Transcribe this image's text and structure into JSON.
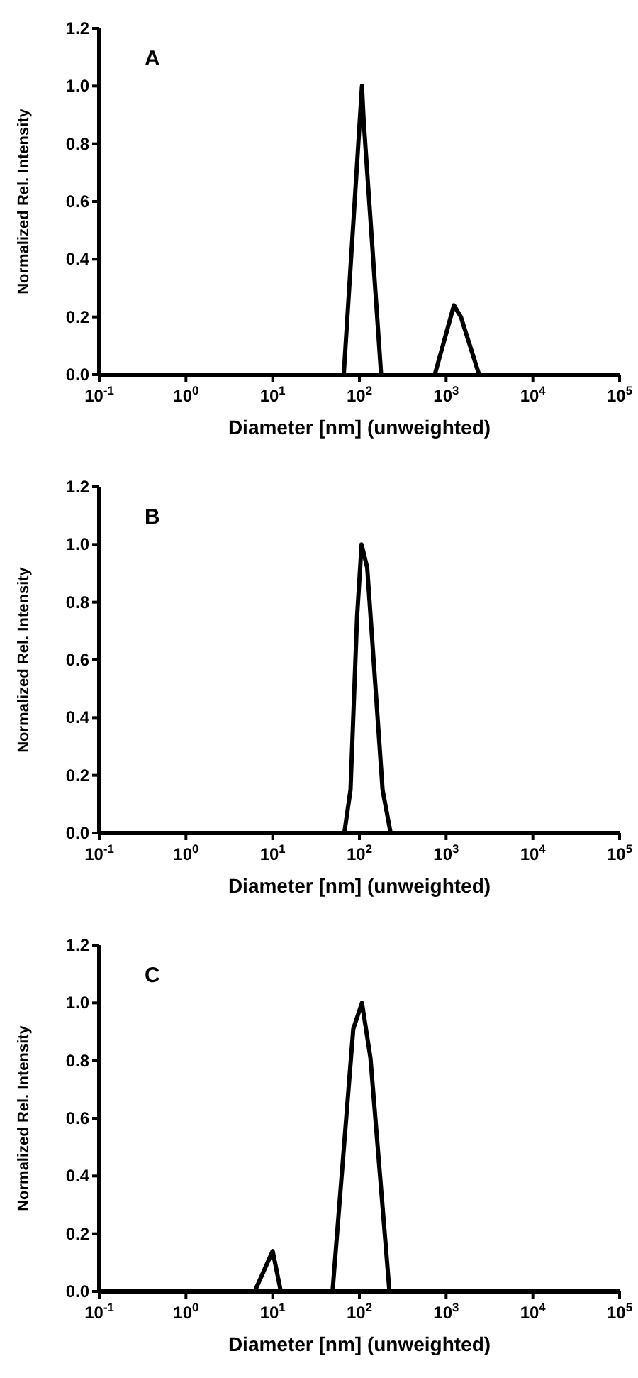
{
  "chart_data": [
    {
      "type": "line",
      "xlabel": "Diameter [nm] (unweighted)",
      "ylabel": "Normalized Rel. Intensity",
      "annotations": [
        "A"
      ],
      "log": "x",
      "xlim": [
        0.1,
        100000
      ],
      "ylim": [
        0,
        1.2
      ],
      "xticks": [
        {
          "value": 0.1,
          "label": "10$^{-1}$"
        },
        {
          "value": 1,
          "label": "10$^{0}$"
        },
        {
          "value": 10,
          "label": "10$^{1}$"
        },
        {
          "value": 100,
          "label": "10$^{2}$"
        },
        {
          "value": 1000,
          "label": "10$^{3}$"
        },
        {
          "value": 10000,
          "label": "10$^{4}$"
        },
        {
          "value": 100000,
          "label": "10$^{5}$"
        }
      ],
      "yticks": [
        {
          "value": 0,
          "label": "0.0"
        },
        {
          "value": 0.2,
          "label": "0.2"
        },
        {
          "value": 0.4,
          "label": "0.4"
        },
        {
          "value": 0.6,
          "label": "0.6"
        },
        {
          "value": 0.8,
          "label": "0.8"
        },
        {
          "value": 1,
          "label": "1.0"
        },
        {
          "value": 1.2,
          "label": "1.2"
        }
      ],
      "series": [
        {
          "color": "#000000",
          "x": [
            66,
            107,
            112,
            178,
            740,
            1230,
            1480,
            2400
          ],
          "values": [
            0,
            1.0,
            0.88,
            0,
            0,
            0.24,
            0.2,
            0
          ]
        }
      ]
    },
    {
      "type": "line",
      "xlabel": "Diameter [nm] (unweighted)",
      "ylabel": "Normalized Rel. Intensity",
      "annotations": [
        "B"
      ],
      "log": "x",
      "xlim": [
        0.1,
        100000
      ],
      "ylim": [
        0,
        1.2
      ],
      "xticks": [
        {
          "value": 0.1,
          "label": "10$^{-1}$"
        },
        {
          "value": 1,
          "label": "10$^{0}$"
        },
        {
          "value": 10,
          "label": "10$^{1}$"
        },
        {
          "value": 100,
          "label": "10$^{2}$"
        },
        {
          "value": 1000,
          "label": "10$^{3}$"
        },
        {
          "value": 10000,
          "label": "10$^{4}$"
        },
        {
          "value": 100000,
          "label": "10$^{5}$"
        }
      ],
      "yticks": [
        {
          "value": 0,
          "label": "0.0"
        },
        {
          "value": 0.2,
          "label": "0.2"
        },
        {
          "value": 0.4,
          "label": "0.4"
        },
        {
          "value": 0.6,
          "label": "0.6"
        },
        {
          "value": 0.8,
          "label": "0.8"
        },
        {
          "value": 1,
          "label": "1.0"
        },
        {
          "value": 1.2,
          "label": "1.2"
        }
      ],
      "series": [
        {
          "color": "#000000",
          "x": [
            67,
            79,
            94,
            106,
            123,
            185,
            229
          ],
          "values": [
            0,
            0.15,
            0.75,
            1.0,
            0.92,
            0.15,
            0
          ]
        }
      ]
    },
    {
      "type": "line",
      "xlabel": "Diameter [nm] (unweighted)",
      "ylabel": "Normalized Rel. Intensity",
      "annotations": [
        "C"
      ],
      "log": "x",
      "xlim": [
        0.1,
        100000
      ],
      "ylim": [
        0,
        1.2
      ],
      "xticks": [
        {
          "value": 0.1,
          "label": "10$^{-1}$"
        },
        {
          "value": 1,
          "label": "10$^{0}$"
        },
        {
          "value": 10,
          "label": "10$^{1}$"
        },
        {
          "value": 100,
          "label": "10$^{2}$"
        },
        {
          "value": 1000,
          "label": "10$^{3}$"
        },
        {
          "value": 10000,
          "label": "10$^{4}$"
        },
        {
          "value": 100000,
          "label": "10$^{5}$"
        }
      ],
      "yticks": [
        {
          "value": 0,
          "label": "0.0"
        },
        {
          "value": 0.2,
          "label": "0.2"
        },
        {
          "value": 0.4,
          "label": "0.4"
        },
        {
          "value": 0.6,
          "label": "0.6"
        },
        {
          "value": 0.8,
          "label": "0.8"
        },
        {
          "value": 1,
          "label": "1.0"
        },
        {
          "value": 1.2,
          "label": "1.2"
        }
      ],
      "series": [
        {
          "color": "#000000",
          "x": [
            6.2,
            10,
            12.4,
            49,
            85,
            107,
            134,
            222
          ],
          "values": [
            0,
            0.14,
            0,
            0,
            0.91,
            1.0,
            0.81,
            0
          ]
        }
      ]
    }
  ]
}
